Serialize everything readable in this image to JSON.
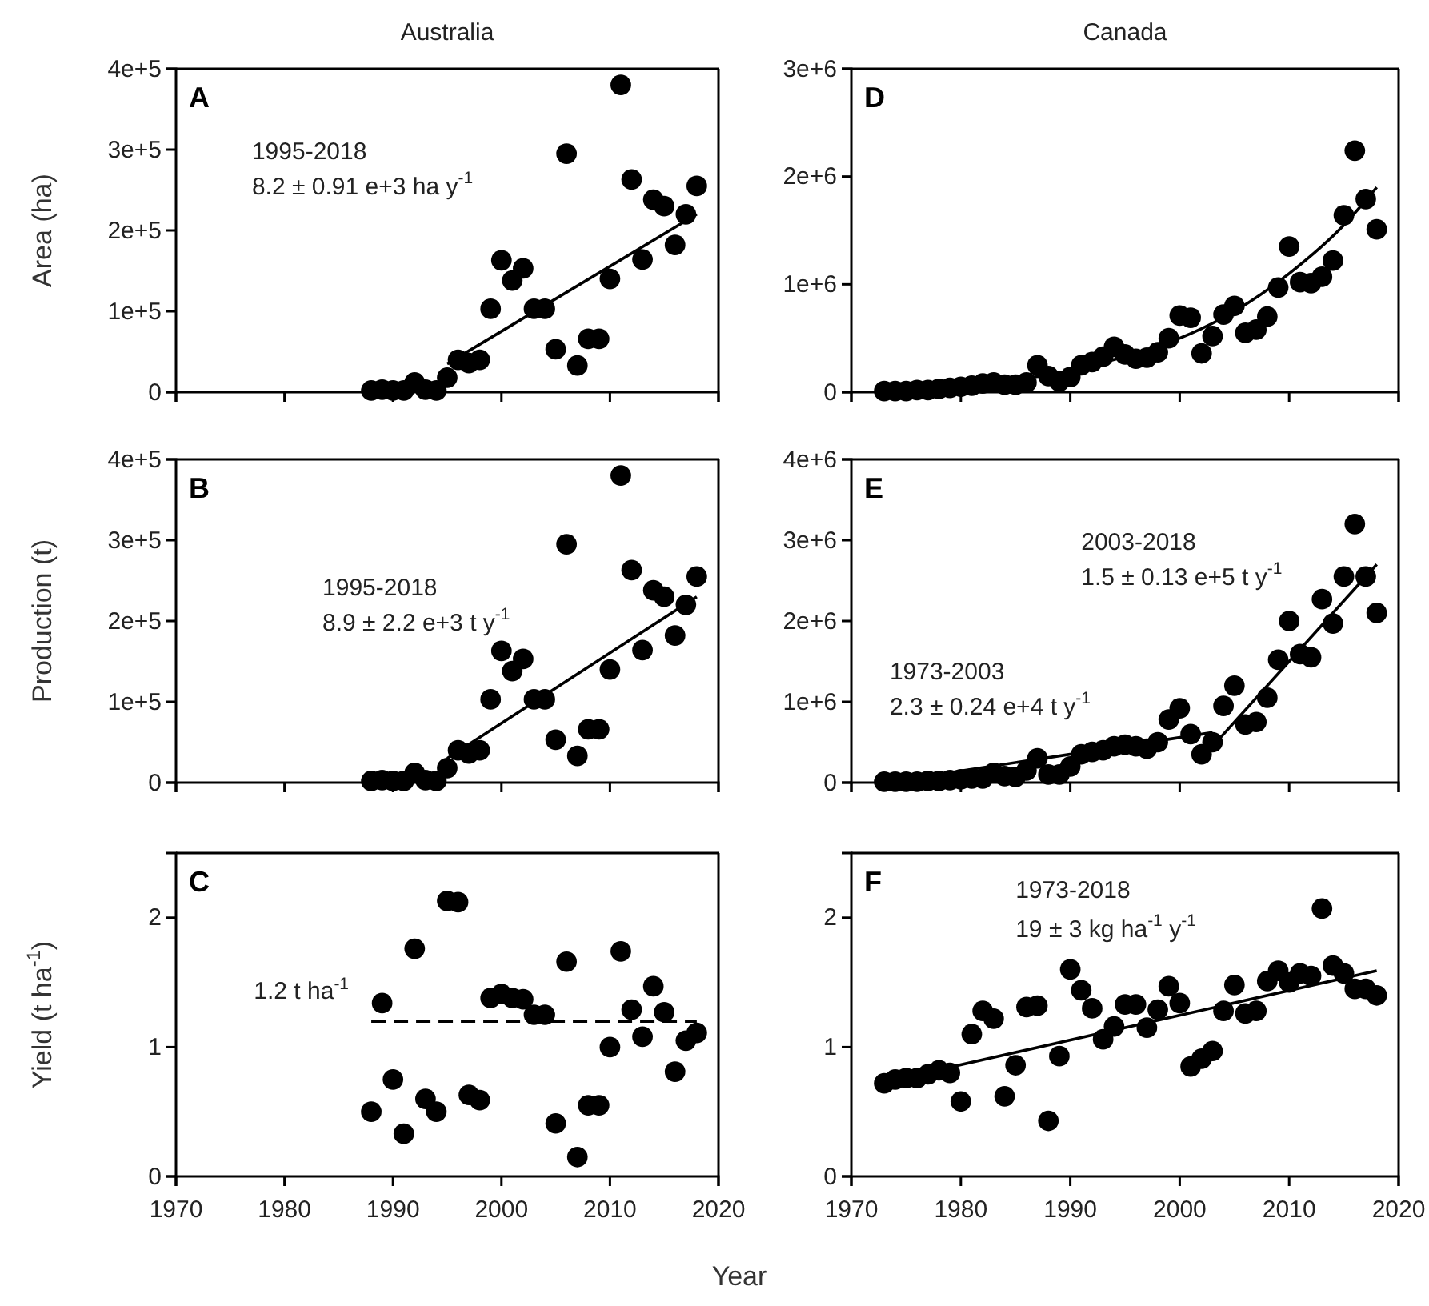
{
  "chart_data": [
    {
      "type": "scatter",
      "title": "Australia",
      "subtitle": "A",
      "ylabel": "Area (ha)",
      "xlim": [
        1970,
        2020
      ],
      "xticks": [
        1970,
        1980,
        1990,
        2000,
        2010,
        2020
      ],
      "ylim": [
        0,
        400000
      ],
      "yticks": [
        0,
        {
          "value": 100000,
          "label": "1e+5"
        },
        {
          "value": 200000,
          "label": "2e+5"
        },
        {
          "value": 300000,
          "label": "3e+5"
        },
        {
          "value": 400000,
          "label": "4e+5"
        }
      ],
      "tick_labels": "y",
      "annotations": [
        "1995-2018",
        "8.2 ± 0.91 e+3 ha y$^{-1}$"
      ],
      "series": [
        {
          "marker": "circle",
          "color": "#000000",
          "x": [
            1988,
            1989,
            1990,
            1991,
            1992,
            1993,
            1994,
            1995,
            1996,
            1997,
            1998,
            1999,
            2000,
            2001,
            2002,
            2003,
            2004,
            2005,
            2006,
            2007,
            2008,
            2009,
            2010,
            2011,
            2012,
            2013,
            2014,
            2015,
            2016,
            2017,
            2018
          ],
          "values": [
            2000,
            3000,
            2000,
            2000,
            12000,
            3000,
            2000,
            18000,
            40000,
            36000,
            40000,
            103000,
            163000,
            138000,
            153000,
            103000,
            103000,
            53000,
            295000,
            33000,
            66000,
            66000,
            140000,
            380000,
            263000,
            164000,
            238000,
            230000,
            182000,
            220000,
            255000
          ]
        },
        {
          "type": "line",
          "marker": "none",
          "color": "#000000",
          "line_style": "solid",
          "x": [
            1995,
            2018
          ],
          "values": [
            35000,
            220000
          ]
        }
      ]
    },
    {
      "type": "scatter",
      "title": "Canada",
      "subtitle": "D",
      "xlim": [
        1970,
        2020
      ],
      "xticks": [
        1970,
        1980,
        1990,
        2000,
        2010,
        2020
      ],
      "ylim": [
        0,
        3000000
      ],
      "yticks": [
        0,
        {
          "value": 1000000,
          "label": "1e+6"
        },
        {
          "value": 2000000,
          "label": "2e+6"
        },
        {
          "value": 3000000,
          "label": "3e+6"
        }
      ],
      "tick_labels": "y",
      "series": [
        {
          "marker": "circle",
          "color": "#000000",
          "x": [
            1973,
            1974,
            1975,
            1976,
            1977,
            1978,
            1979,
            1980,
            1981,
            1982,
            1983,
            1984,
            1985,
            1986,
            1987,
            1988,
            1989,
            1990,
            1991,
            1992,
            1993,
            1994,
            1995,
            1996,
            1997,
            1998,
            1999,
            2000,
            2001,
            2002,
            2003,
            2004,
            2005,
            2006,
            2007,
            2008,
            2009,
            2010,
            2011,
            2012,
            2013,
            2014,
            2015,
            2016,
            2017,
            2018
          ],
          "values": [
            10000,
            10000,
            10000,
            20000,
            20000,
            30000,
            40000,
            50000,
            60000,
            80000,
            90000,
            70000,
            70000,
            90000,
            250000,
            150000,
            100000,
            140000,
            250000,
            280000,
            330000,
            420000,
            350000,
            310000,
            320000,
            370000,
            500000,
            710000,
            690000,
            360000,
            520000,
            720000,
            800000,
            550000,
            580000,
            700000,
            970000,
            1350000,
            1020000,
            1010000,
            1070000,
            1220000,
            1640000,
            2240000,
            1790000,
            1510000
          ]
        },
        {
          "type": "line",
          "marker": "none",
          "color": "#000000",
          "line_style": "solid",
          "x": [
            1973,
            1980,
            1990,
            1995,
            2000,
            2005,
            2010,
            2015,
            2018
          ],
          "values": [
            20000,
            60000,
            200000,
            330000,
            500000,
            750000,
            1100000,
            1550000,
            1900000
          ]
        }
      ]
    },
    {
      "type": "scatter",
      "subtitle": "B",
      "ylabel": "Production (t)",
      "xlim": [
        1970,
        2020
      ],
      "xticks": [
        1970,
        1980,
        1990,
        2000,
        2010,
        2020
      ],
      "ylim": [
        0,
        400000
      ],
      "yticks": [
        0,
        {
          "value": 100000,
          "label": "1e+5"
        },
        {
          "value": 200000,
          "label": "2e+5"
        },
        {
          "value": 300000,
          "label": "3e+5"
        },
        {
          "value": 400000,
          "label": "4e+5"
        }
      ],
      "tick_labels": "y",
      "annotations": [
        "1995-2018",
        "8.9 ± 2.2 e+3 t y$^{-1}$"
      ],
      "series": [
        {
          "marker": "circle",
          "color": "#000000",
          "x": [
            1988,
            1989,
            1990,
            1991,
            1992,
            1993,
            1994,
            1995,
            1996,
            1997,
            1998,
            1999,
            2000,
            2001,
            2002,
            2003,
            2004,
            2005,
            2006,
            2007,
            2008,
            2009,
            2010,
            2011,
            2012,
            2013,
            2014,
            2015,
            2016,
            2017,
            2018
          ],
          "values": [
            2000,
            3000,
            2000,
            2000,
            12000,
            3000,
            2000,
            18000,
            40000,
            36000,
            40000,
            103000,
            163000,
            138000,
            153000,
            103000,
            103000,
            53000,
            295000,
            33000,
            66000,
            66000,
            140000,
            380000,
            263000,
            164000,
            238000,
            230000,
            182000,
            220000,
            255000
          ]
        },
        {
          "type": "line",
          "marker": "none",
          "color": "#000000",
          "line_style": "solid",
          "x": [
            1995,
            2018
          ],
          "values": [
            30000,
            230000
          ]
        }
      ]
    },
    {
      "type": "scatter",
      "subtitle": "E",
      "xlim": [
        1970,
        2020
      ],
      "xticks": [
        1970,
        1980,
        1990,
        2000,
        2010,
        2020
      ],
      "ylim": [
        0,
        4000000
      ],
      "yticks": [
        0,
        {
          "value": 1000000,
          "label": "1e+6"
        },
        {
          "value": 2000000,
          "label": "2e+6"
        },
        {
          "value": 3000000,
          "label": "3e+6"
        },
        {
          "value": 4000000,
          "label": "4e+6"
        }
      ],
      "tick_labels": "y",
      "annotations": [
        "2003-2018",
        "1.5 ± 0.13 e+5 t y$^{-1}$",
        "1973-2003",
        "2.3 ± 0.24 e+4 t y$^{-1}$"
      ],
      "series": [
        {
          "marker": "circle",
          "color": "#000000",
          "x": [
            1973,
            1974,
            1975,
            1976,
            1977,
            1978,
            1979,
            1980,
            1981,
            1982,
            1983,
            1984,
            1985,
            1986,
            1987,
            1988,
            1989,
            1990,
            1991,
            1992,
            1993,
            1994,
            1995,
            1996,
            1997,
            1998,
            1999,
            2000,
            2001,
            2002,
            2003,
            2004,
            2005,
            2006,
            2007,
            2008,
            2009,
            2010,
            2011,
            2012,
            2013,
            2014,
            2015,
            2016,
            2017,
            2018
          ],
          "values": [
            10000,
            10000,
            10000,
            10000,
            20000,
            20000,
            30000,
            40000,
            50000,
            50000,
            120000,
            80000,
            70000,
            150000,
            300000,
            100000,
            100000,
            200000,
            350000,
            380000,
            400000,
            450000,
            470000,
            450000,
            420000,
            500000,
            780000,
            920000,
            600000,
            350000,
            500000,
            950000,
            1200000,
            720000,
            750000,
            1050000,
            1520000,
            2000000,
            1590000,
            1550000,
            2270000,
            1970000,
            2550000,
            3200000,
            2550000,
            2100000
          ]
        },
        {
          "type": "line",
          "marker": "none",
          "color": "#000000",
          "line_style": "solid",
          "x": [
            1973,
            2003
          ],
          "values": [
            0,
            620000
          ]
        },
        {
          "type": "line",
          "marker": "none",
          "color": "#000000",
          "line_style": "solid",
          "x": [
            2003,
            2018
          ],
          "values": [
            450000,
            2700000
          ]
        }
      ]
    },
    {
      "type": "scatter",
      "subtitle": "C",
      "ylabel": "Yield (t ha$^{-1}$)",
      "xlabel": "Year",
      "xlim": [
        1970,
        2020
      ],
      "xticks": [
        1970,
        1980,
        1990,
        2000,
        2010,
        2020
      ],
      "ylim": [
        0,
        2.5
      ],
      "yticks": [
        0,
        1,
        2
      ],
      "annotations": [
        {
          "text": "1.2 t ha$^{-1}$",
          "x": 1988,
          "y": 1.2
        }
      ],
      "series": [
        {
          "marker": "circle",
          "color": "#000000",
          "x": [
            1988,
            1989,
            1990,
            1991,
            1992,
            1993,
            1994,
            1995,
            1996,
            1997,
            1998,
            1999,
            2000,
            2001,
            2002,
            2003,
            2004,
            2005,
            2006,
            2007,
            2008,
            2009,
            2010,
            2011,
            2012,
            2013,
            2014,
            2015,
            2016,
            2017,
            2018
          ],
          "values": [
            0.5,
            1.34,
            0.75,
            0.33,
            1.76,
            0.6,
            0.5,
            2.13,
            2.12,
            0.63,
            0.59,
            1.38,
            1.41,
            1.38,
            1.37,
            1.25,
            1.25,
            0.41,
            1.66,
            0.15,
            0.55,
            0.55,
            1.0,
            1.74,
            1.29,
            1.08,
            1.47,
            1.27,
            0.81,
            1.05,
            1.11
          ]
        },
        {
          "type": "line",
          "marker": "none",
          "color": "#000000",
          "line_style": "dashed",
          "x": [
            1988,
            2018
          ],
          "values": [
            1.2,
            1.2
          ]
        }
      ]
    },
    {
      "type": "scatter",
      "subtitle": "F",
      "xlim": [
        1970,
        2020
      ],
      "xticks": [
        1970,
        1980,
        1990,
        2000,
        2010,
        2020
      ],
      "ylim": [
        0,
        2.5
      ],
      "yticks": [
        0,
        1,
        2
      ],
      "annotations": [
        "1973-2018",
        "19 ± 3 kg ha$^{-1}$ y$^{-1}$"
      ],
      "series": [
        {
          "marker": "circle",
          "color": "#000000",
          "x": [
            1973,
            1974,
            1975,
            1976,
            1977,
            1978,
            1979,
            1980,
            1981,
            1982,
            1983,
            1984,
            1985,
            1986,
            1987,
            1988,
            1989,
            1990,
            1991,
            1992,
            1993,
            1994,
            1995,
            1996,
            1997,
            1998,
            1999,
            2000,
            2001,
            2002,
            2003,
            2004,
            2005,
            2006,
            2007,
            2008,
            2009,
            2010,
            2011,
            2012,
            2013,
            2014,
            2015,
            2016,
            2017,
            2018
          ],
          "values": [
            0.72,
            0.75,
            0.76,
            0.76,
            0.79,
            0.82,
            0.8,
            0.58,
            1.1,
            1.28,
            1.22,
            0.62,
            0.86,
            1.31,
            1.32,
            0.43,
            0.93,
            1.6,
            1.44,
            1.3,
            1.06,
            1.16,
            1.33,
            1.33,
            1.15,
            1.29,
            1.47,
            1.34,
            0.85,
            0.91,
            0.97,
            1.28,
            1.48,
            1.26,
            1.28,
            1.51,
            1.59,
            1.5,
            1.57,
            1.55,
            2.07,
            1.63,
            1.57,
            1.45,
            1.45,
            1.4
          ]
        },
        {
          "type": "line",
          "marker": "none",
          "color": "#000000",
          "line_style": "solid",
          "x": [
            1973,
            2018
          ],
          "values": [
            0.73,
            1.59
          ]
        }
      ]
    }
  ]
}
